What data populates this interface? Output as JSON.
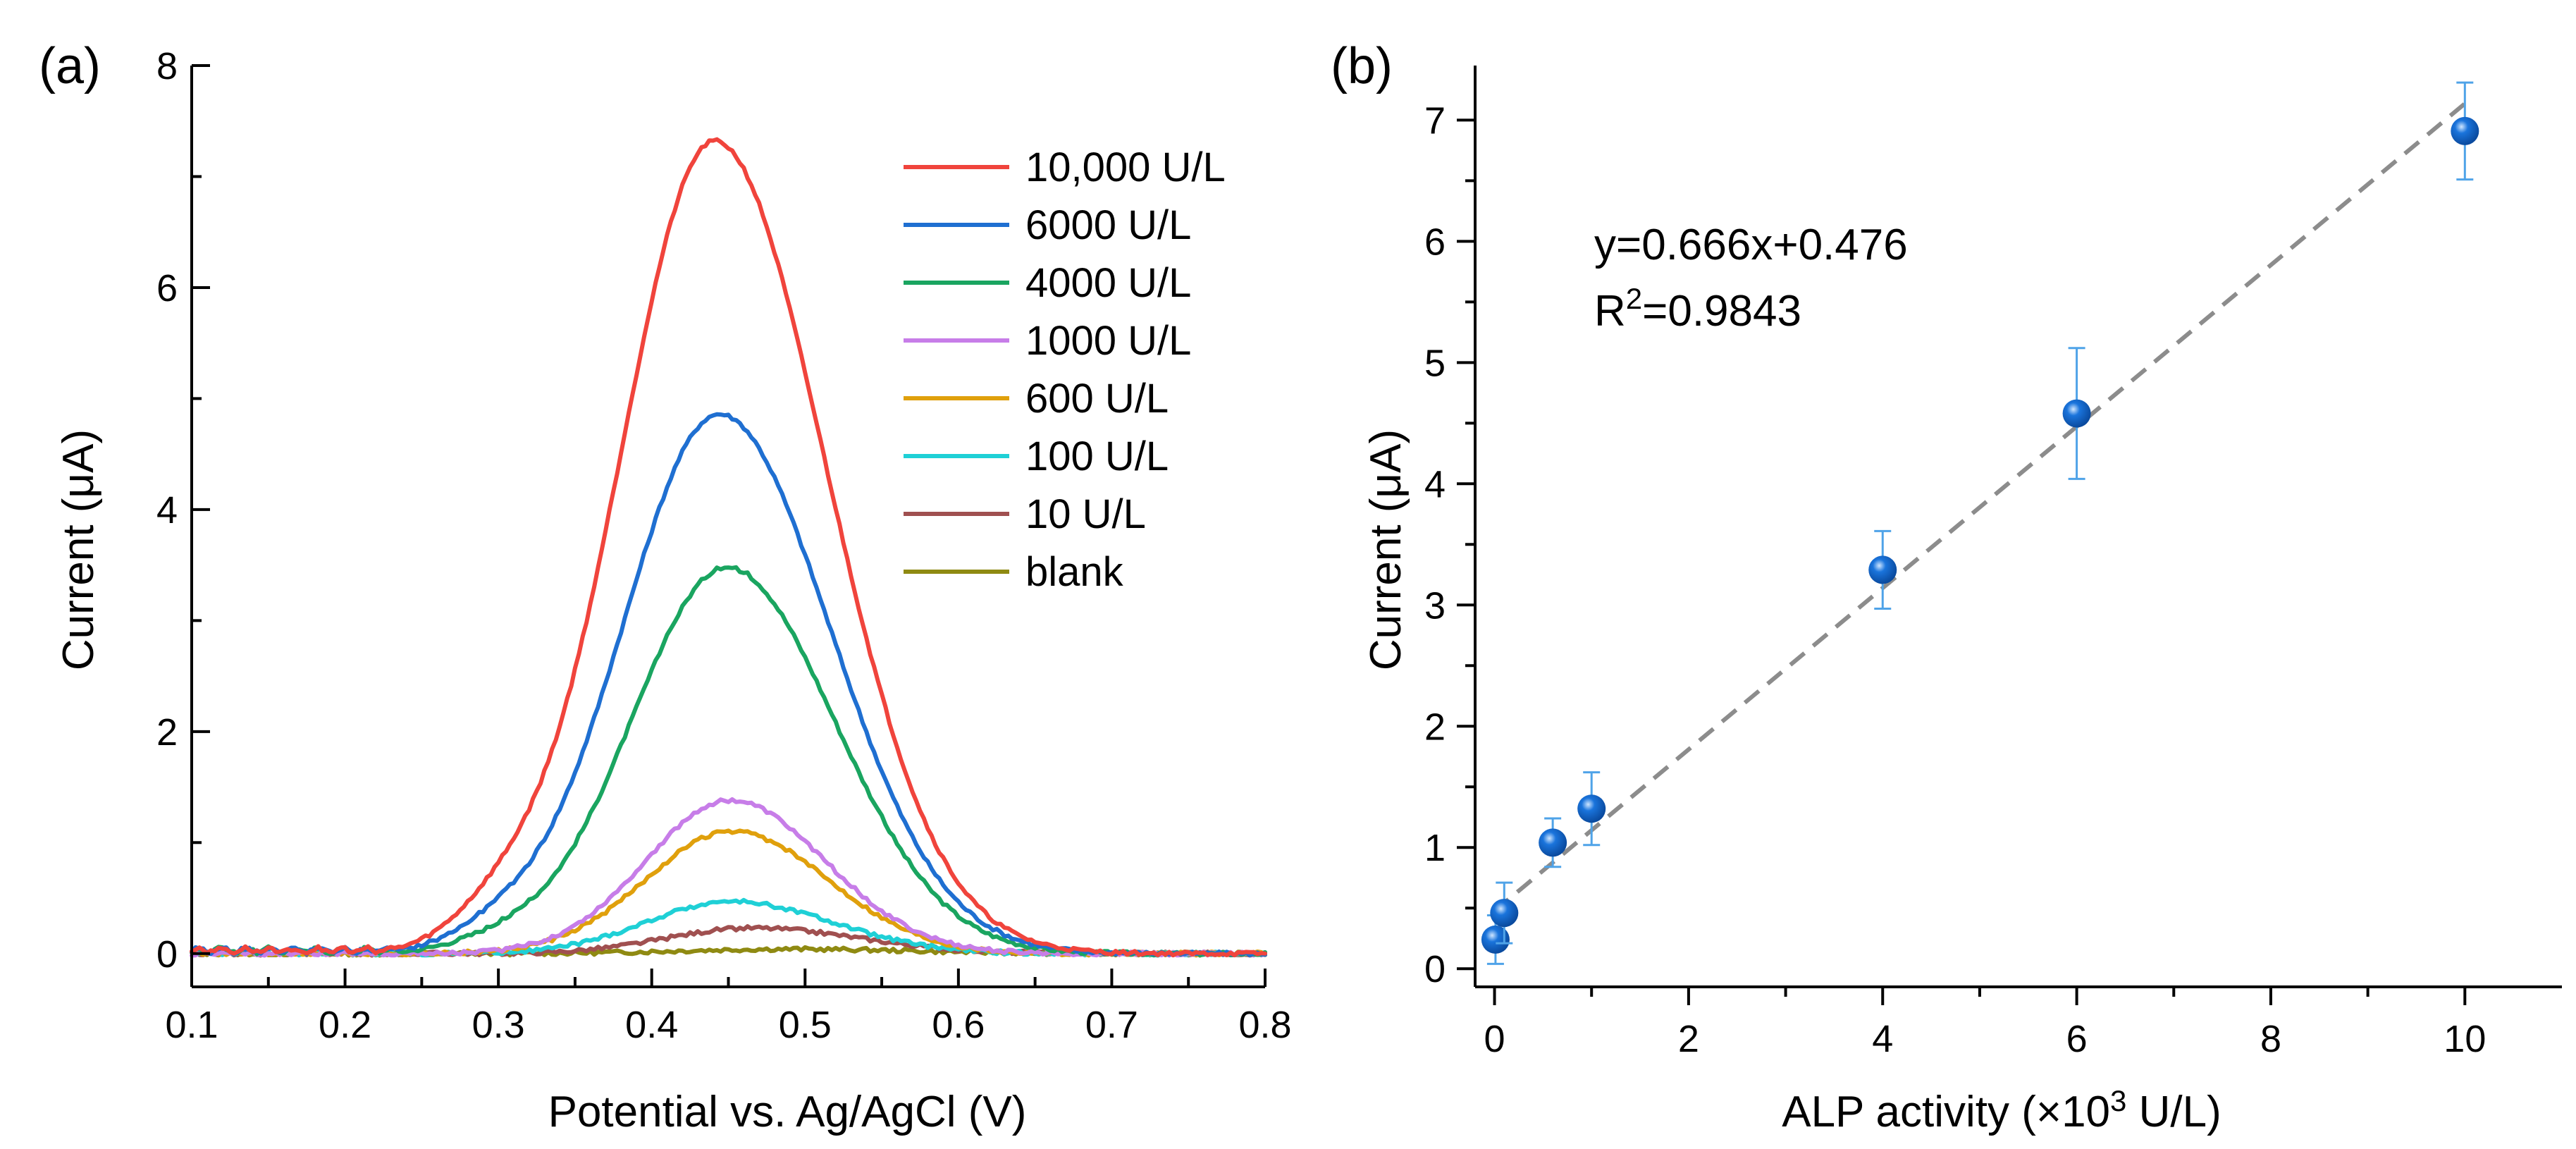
{
  "chart_data": [
    {
      "type": "line",
      "panel_label": "(a)",
      "xlabel": "Potential vs. Ag/AgCl (V)",
      "ylabel": "Current (μA)",
      "xlim": [
        0.1,
        0.8
      ],
      "ylim": [
        -0.3,
        8
      ],
      "xticks": [
        "0.1",
        "0.2",
        "0.3",
        "0.4",
        "0.5",
        "0.6",
        "0.7",
        "0.8"
      ],
      "yticks": [
        "0",
        "2",
        "4",
        "6",
        "8"
      ],
      "legend_position": "top-right",
      "series": [
        {
          "name": "10,000 U/L",
          "color": "#f0443c",
          "peak": 7.32,
          "center": 0.441,
          "sigma_left": 0.062,
          "sigma_right": 0.072,
          "shoulder": 0.45
        },
        {
          "name": "6000 U/L",
          "color": "#1f6fd1",
          "peak": 4.86,
          "center": 0.444,
          "sigma_left": 0.063,
          "sigma_right": 0.072,
          "shoulder": 0.25
        },
        {
          "name": "4000 U/L",
          "color": "#1aa560",
          "peak": 3.48,
          "center": 0.449,
          "sigma_left": 0.062,
          "sigma_right": 0.07,
          "shoulder": 0.15
        },
        {
          "name": "1000 U/L",
          "color": "#c77de8",
          "peak": 1.38,
          "center": 0.451,
          "sigma_left": 0.055,
          "sigma_right": 0.062,
          "shoulder": 0.0
        },
        {
          "name": "600 U/L",
          "color": "#e0a00c",
          "peak": 1.1,
          "center": 0.452,
          "sigma_left": 0.056,
          "sigma_right": 0.063,
          "shoulder": 0.0
        },
        {
          "name": "100 U/L",
          "color": "#1fd0d6",
          "peak": 0.47,
          "center": 0.452,
          "sigma_left": 0.055,
          "sigma_right": 0.065,
          "shoulder": 0.0
        },
        {
          "name": "10 U/L",
          "color": "#a05050",
          "peak": 0.23,
          "center": 0.465,
          "sigma_left": 0.055,
          "sigma_right": 0.07,
          "shoulder": 0.0
        },
        {
          "name": "blank",
          "color": "#8f8a12",
          "peak": 0.04,
          "center": 0.49,
          "sigma_left": 0.07,
          "sigma_right": 0.08,
          "shoulder": 0.0
        }
      ]
    },
    {
      "type": "scatter",
      "panel_label": "(b)",
      "xlabel_prefix": "ALP activity (×10",
      "xlabel_sup": "3",
      "xlabel_suffix": " U/L)",
      "ylabel": "Current (μA)",
      "xlim": [
        -0.2,
        11
      ],
      "ylim": [
        -0.15,
        7.45
      ],
      "xticks": [
        "0",
        "2",
        "4",
        "6",
        "8",
        "10"
      ],
      "yticks": [
        "0",
        "1",
        "2",
        "3",
        "4",
        "5",
        "6",
        "7"
      ],
      "point_color": "#1a74dc",
      "errorbar_color": "#4fa3e8",
      "fit_color": "#8c8c8c",
      "points": [
        {
          "x": 0.01,
          "y": 0.24,
          "err": 0.2
        },
        {
          "x": 0.1,
          "y": 0.46,
          "err": 0.25
        },
        {
          "x": 0.6,
          "y": 1.04,
          "err": 0.2
        },
        {
          "x": 1.0,
          "y": 1.32,
          "err": 0.3
        },
        {
          "x": 4.0,
          "y": 3.29,
          "err": 0.32
        },
        {
          "x": 6.0,
          "y": 4.58,
          "err": 0.54
        },
        {
          "x": 10.0,
          "y": 6.91,
          "err": 0.4
        }
      ],
      "fit": {
        "slope": 0.666,
        "intercept": 0.476,
        "x_range": [
          0,
          10
        ]
      },
      "equation": "y=0.666x+0.476",
      "r2_prefix": "R",
      "r2_sup": "2",
      "r2_suffix": "=0.9843"
    }
  ]
}
